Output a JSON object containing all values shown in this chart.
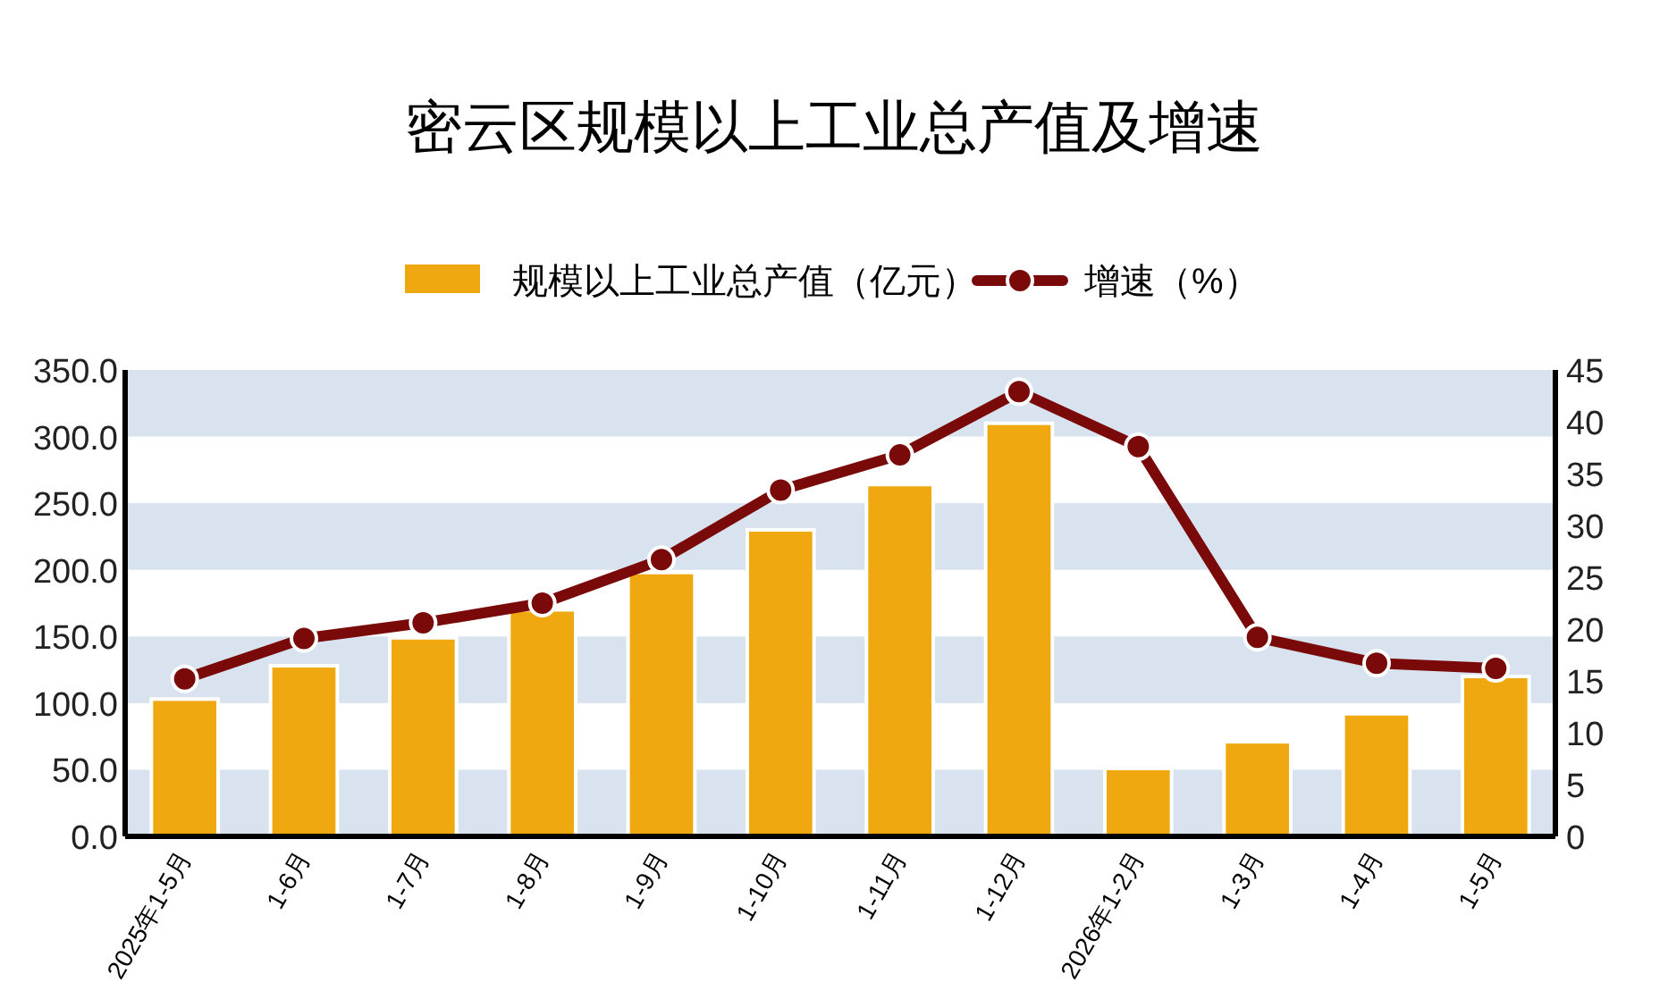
{
  "chart_data": {
    "type": "bar",
    "title": "密云区规模以上工业总产值及增速",
    "categories": [
      "2025年1-5月",
      "1-6月",
      "1-7月",
      "1-8月",
      "1-9月",
      "1-10月",
      "1-11月",
      "1-12月",
      "2026年1-2月",
      "1-3月",
      "1-4月",
      "1-5月"
    ],
    "series": [
      {
        "name": "规模以上工业总产值（亿元）",
        "color": "#f0a811",
        "values": [
          103,
          128,
          149,
          170,
          198,
          230,
          264,
          310,
          51,
          71,
          92,
          120
        ]
      },
      {
        "name": "增速（%）",
        "type": "line",
        "axis": "y2",
        "color": "#7a0a0a",
        "marker": "circle",
        "values": [
          15.2,
          19.1,
          20.6,
          22.5,
          26.7,
          33.4,
          36.8,
          42.9,
          37.6,
          19.2,
          16.7,
          16.2
        ]
      }
    ],
    "ylim": [
      0,
      350
    ],
    "yticks": [
      {
        "value": 0,
        "label": "0.0"
      },
      {
        "value": 50,
        "label": "50.0"
      },
      {
        "value": 100,
        "label": "100.0"
      },
      {
        "value": 150,
        "label": "150.0"
      },
      {
        "value": 200,
        "label": "200.0"
      },
      {
        "value": 250,
        "label": "250.0"
      },
      {
        "value": 300,
        "label": "300.0"
      },
      {
        "value": 350,
        "label": "350.0"
      }
    ],
    "y2lim": [
      0,
      45
    ],
    "y2ticks": [
      0,
      5,
      10,
      15,
      20,
      25,
      30,
      35,
      40,
      45
    ],
    "bands": [
      {
        "axis": "y",
        "from": 0,
        "to": 50,
        "color": "#d9e3ef"
      },
      {
        "axis": "y",
        "from": 100,
        "to": 150,
        "color": "#d9e3ef"
      },
      {
        "axis": "y",
        "from": 200,
        "to": 250,
        "color": "#d9e3ef"
      },
      {
        "axis": "y",
        "from": 300,
        "to": 350,
        "color": "#d9e3ef"
      }
    ],
    "legend": "top"
  }
}
